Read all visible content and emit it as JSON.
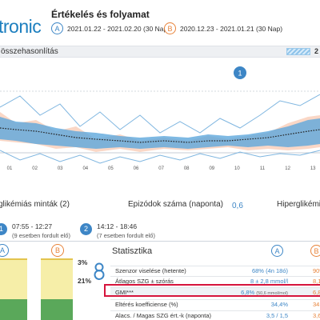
{
  "header": {
    "logo": "tronic",
    "title": "Értékelés és folyamat",
    "period_a": {
      "badge": "A",
      "text": "2021.01.22 - 2021.02.20 (30 Nap)"
    },
    "period_b": {
      "badge": "B",
      "text": "2020.12.23 - 2021.01.21 (30 Nap)"
    }
  },
  "comparison": {
    "title": "összehasonlítás",
    "legend_label": "2",
    "marker": "1",
    "x_tick_labels": [
      "01",
      "02",
      "03",
      "04",
      "05",
      "06",
      "07",
      "08",
      "09",
      "10",
      "11",
      "12",
      "13"
    ]
  },
  "episodes": {
    "hypo_title": "glikémiás minták (2)",
    "count_title": "Epizódok száma (naponta)",
    "count_value": "0,6",
    "hyper_title": "Hiperglikémi",
    "events": [
      {
        "num": "1",
        "time": "07:55 - 12:27",
        "sub": "(9 esetben fordult elő)"
      },
      {
        "num": "2",
        "time": "14:12 - 18:46",
        "sub": "(7 esetben fordult elő)"
      }
    ]
  },
  "tir": {
    "badge_a": "A",
    "badge_b": "B",
    "pct_high": "3%",
    "pct_mid": "21%",
    "glyph": "8"
  },
  "stats": {
    "title": "Statisztika",
    "badge_a": "A",
    "badge_b": "B",
    "rows": [
      {
        "label": "Szenzor viselése (hetente)",
        "a": "68% (4n 18ó)",
        "b": "90%"
      },
      {
        "label": "Átlagos SZG ± szórás",
        "a": "8 ± 2,8 mmol/l",
        "b": "8,1"
      },
      {
        "label": "GMI***",
        "a": "6,8%",
        "a_sub": "(50,6 mmol/mol)",
        "b": "6,8"
      },
      {
        "label": "Eltérés koefficiense (%)",
        "a": "34,4%",
        "b": "34,4"
      },
      {
        "label": "Alacs. / Magas SZG ért.-k (naponta)",
        "a": "3,5 / 1,5",
        "b": "3,6"
      }
    ]
  },
  "colors": {
    "brand": "#1d7fbf",
    "period_a": "#3d86c6",
    "period_b": "#e8833a",
    "highlight": "#d6143c"
  }
}
